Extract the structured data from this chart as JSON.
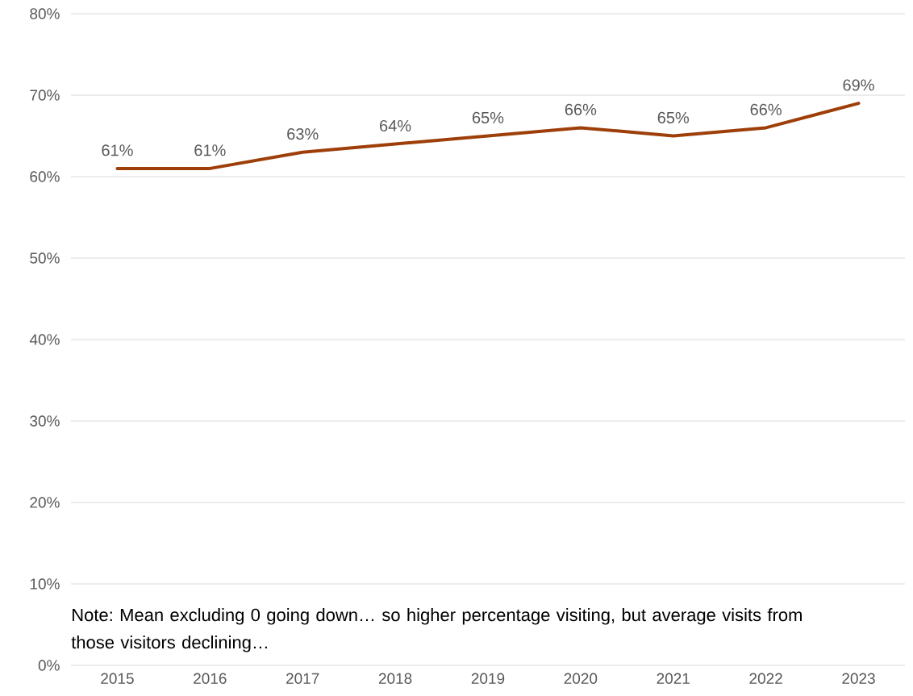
{
  "chart_data": {
    "type": "line",
    "categories": [
      "2015",
      "2016",
      "2017",
      "2018",
      "2019",
      "2020",
      "2021",
      "2022",
      "2023"
    ],
    "series": [
      {
        "color": "#9e3f0a",
        "values": [
          61,
          61,
          63,
          64,
          65,
          66,
          65,
          66,
          69
        ],
        "value_labels": [
          "61%",
          "61%",
          "63%",
          "64%",
          "65%",
          "66%",
          "65%",
          "66%",
          "69%"
        ]
      }
    ],
    "ylim": [
      0,
      80
    ],
    "yticks": [
      {
        "value": 0,
        "label": "0%"
      },
      {
        "value": 10,
        "label": "10%"
      },
      {
        "value": 20,
        "label": "20%"
      },
      {
        "value": 30,
        "label": "30%"
      },
      {
        "value": 40,
        "label": "40%"
      },
      {
        "value": 50,
        "label": "50%"
      },
      {
        "value": 60,
        "label": "60%"
      },
      {
        "value": 70,
        "label": "70%"
      },
      {
        "value": 80,
        "label": "80%"
      }
    ],
    "grid": "y",
    "marker": "none",
    "line_style": "solid",
    "annotations": [
      "Note: Mean excluding 0 going down… so higher percentage visiting, but average visits from those visitors declining…"
    ]
  }
}
